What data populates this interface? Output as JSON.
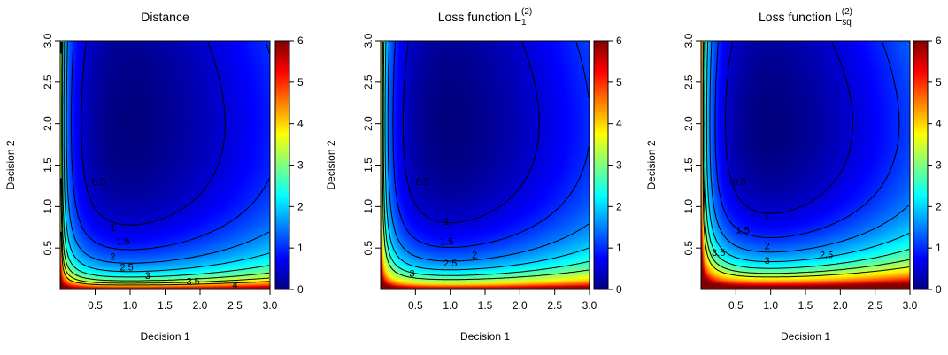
{
  "chart_data": [
    {
      "type": "heatmap",
      "title": "Distance",
      "title_sub": "",
      "title_sup": "",
      "xlabel": "Decision 1",
      "ylabel": "Decision 2",
      "xlim": [
        0,
        3.0
      ],
      "ylim": [
        0,
        3.0
      ],
      "xticks": [
        "0.5",
        "1.0",
        "1.5",
        "2.0",
        "2.5",
        "3.0"
      ],
      "yticks": [
        "0.5",
        "1.0",
        "1.5",
        "2.0",
        "2.5",
        "3.0"
      ],
      "colorbar_ticks": [
        "0",
        "1",
        "2",
        "3",
        "4",
        "5",
        "6"
      ],
      "colorbar_range": [
        0,
        6
      ],
      "colormap": [
        "#00007f",
        "#0000ff",
        "#007fff",
        "#00ffff",
        "#7fff7f",
        "#ffff00",
        "#ff7f00",
        "#ff0000",
        "#7f0000"
      ],
      "minimum": {
        "x": 1.0,
        "y": 2.0
      },
      "contour_labels": [
        "0.5",
        "1",
        "1.5",
        "2",
        "2.5",
        "3",
        "3.5",
        "4"
      ],
      "contour_levels": [
        0.5,
        1,
        1.5,
        2,
        2.5,
        3,
        3.5,
        4
      ]
    },
    {
      "type": "heatmap",
      "title": "Loss function L",
      "title_sub": "1",
      "title_sup": "(2)",
      "xlabel": "Decision 1",
      "ylabel": "Decision 2",
      "xlim": [
        0,
        3.0
      ],
      "ylim": [
        0,
        3.0
      ],
      "xticks": [
        "0.5",
        "1.0",
        "1.5",
        "2.0",
        "2.5",
        "3.0"
      ],
      "yticks": [
        "0.5",
        "1.0",
        "1.5",
        "2.0",
        "2.5",
        "3.0"
      ],
      "colorbar_ticks": [
        "0",
        "1",
        "2",
        "3",
        "4",
        "5",
        "6"
      ],
      "colorbar_range": [
        0,
        6
      ],
      "colormap": [
        "#00007f",
        "#0000ff",
        "#007fff",
        "#00ffff",
        "#7fff7f",
        "#ffff00",
        "#ff7f00",
        "#ff0000",
        "#7f0000"
      ],
      "minimum": {
        "x": 1.0,
        "y": 2.0
      },
      "contour_labels": [
        "0.5",
        "1",
        "1.5",
        "2",
        "2.5",
        "3"
      ],
      "contour_levels": [
        0.5,
        1,
        1.5,
        2,
        2.5,
        3
      ]
    },
    {
      "type": "heatmap",
      "title": "Loss function L",
      "title_sub": "sq",
      "title_sup": "(2)",
      "xlabel": "Decision 1",
      "ylabel": "Decision 2",
      "xlim": [
        0,
        3.0
      ],
      "ylim": [
        0,
        3.0
      ],
      "xticks": [
        "0.5",
        "1.0",
        "1.5",
        "2.0",
        "2.5",
        "3.0"
      ],
      "yticks": [
        "0.5",
        "1.0",
        "1.5",
        "2.0",
        "2.5",
        "3.0"
      ],
      "colorbar_ticks": [
        "0",
        "1",
        "2",
        "3",
        "4",
        "5",
        "6"
      ],
      "colorbar_range": [
        0,
        6
      ],
      "colormap": [
        "#00007f",
        "#0000ff",
        "#007fff",
        "#00ffff",
        "#7fff7f",
        "#ffff00",
        "#ff7f00",
        "#ff0000",
        "#7f0000"
      ],
      "minimum": {
        "x": 1.0,
        "y": 2.0
      },
      "contour_labels": [
        "0.5",
        "1",
        "1.5",
        "2",
        "2.5",
        "3",
        "3.5"
      ],
      "contour_levels": [
        0.5,
        1,
        1.5,
        2,
        2.5,
        3,
        3.5
      ]
    }
  ]
}
